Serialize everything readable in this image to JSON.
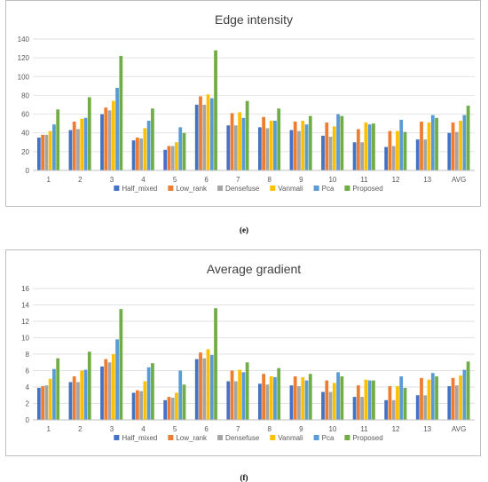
{
  "captions": {
    "e": "(e)",
    "f": "(f)"
  },
  "chart_data": [
    {
      "type": "bar",
      "title": "Edge intensity",
      "xlabel": "",
      "ylabel": "",
      "ylim": [
        0,
        140
      ],
      "yticks": [
        0,
        20,
        40,
        60,
        80,
        100,
        120,
        140
      ],
      "grid": true,
      "legend": "bottom",
      "categories": [
        "1",
        "2",
        "3",
        "4",
        "5",
        "6",
        "7",
        "8",
        "9",
        "10",
        "11",
        "12",
        "13",
        "AVG"
      ],
      "series": [
        {
          "name": "Half_mixed",
          "color": "#4472C4",
          "values": [
            35,
            43,
            60,
            32,
            22,
            70,
            48,
            46,
            43,
            37,
            30,
            25,
            33,
            40
          ]
        },
        {
          "name": "Low_rank",
          "color": "#ED7D31",
          "values": [
            38,
            52,
            67,
            35,
            26,
            79,
            61,
            57,
            52,
            51,
            44,
            42,
            52,
            51
          ]
        },
        {
          "name": "Densefuse",
          "color": "#A5A5A5",
          "values": [
            38,
            44,
            64,
            34,
            26,
            70,
            48,
            45,
            42,
            36,
            30,
            26,
            33,
            41
          ]
        },
        {
          "name": "Vanmali",
          "color": "#FFC000",
          "values": [
            42,
            55,
            74,
            45,
            30,
            81,
            62,
            53,
            53,
            47,
            51,
            42,
            51,
            53
          ]
        },
        {
          "name": "Pca",
          "color": "#5B9BD5",
          "values": [
            49,
            56,
            88,
            53,
            46,
            77,
            56,
            53,
            49,
            60,
            49,
            54,
            59,
            59
          ]
        },
        {
          "name": "Proposed",
          "color": "#70AD47",
          "values": [
            65,
            78,
            122,
            66,
            40,
            128,
            74,
            66,
            58,
            58,
            50,
            41,
            56,
            69
          ]
        }
      ]
    },
    {
      "type": "bar",
      "title": "Average gradient",
      "xlabel": "",
      "ylabel": "",
      "ylim": [
        0,
        16
      ],
      "yticks": [
        0,
        2,
        4,
        6,
        8,
        10,
        12,
        14,
        16
      ],
      "grid": true,
      "legend": "bottom",
      "categories": [
        "1",
        "2",
        "3",
        "4",
        "5",
        "6",
        "7",
        "8",
        "9",
        "10",
        "11",
        "12",
        "13",
        "AVG"
      ],
      "series": [
        {
          "name": "Half_mixed",
          "color": "#4472C4",
          "values": [
            3.9,
            4.6,
            6.5,
            3.3,
            2.4,
            7.4,
            4.7,
            4.4,
            4.2,
            3.4,
            2.8,
            2.4,
            3.0,
            4.1
          ]
        },
        {
          "name": "Low_rank",
          "color": "#ED7D31",
          "values": [
            4.1,
            5.3,
            7.4,
            3.6,
            2.8,
            8.2,
            6.0,
            5.6,
            5.3,
            4.8,
            4.2,
            4.1,
            5.1,
            5.1
          ]
        },
        {
          "name": "Densefuse",
          "color": "#A5A5A5",
          "values": [
            4.2,
            4.6,
            7.0,
            3.5,
            2.7,
            7.5,
            4.7,
            4.3,
            4.1,
            3.4,
            2.8,
            2.4,
            3.0,
            4.2
          ]
        },
        {
          "name": "Vanmali",
          "color": "#FFC000",
          "values": [
            5.0,
            6.0,
            8.0,
            4.7,
            3.3,
            8.6,
            6.1,
            5.3,
            5.2,
            4.5,
            4.9,
            4.1,
            4.9,
            5.4
          ]
        },
        {
          "name": "Pca",
          "color": "#5B9BD5",
          "values": [
            6.2,
            6.1,
            9.8,
            6.4,
            6.0,
            7.9,
            5.8,
            5.2,
            4.8,
            5.8,
            4.8,
            5.3,
            5.7,
            6.1
          ]
        },
        {
          "name": "Proposed",
          "color": "#70AD47",
          "values": [
            7.5,
            8.3,
            13.5,
            6.9,
            4.3,
            13.6,
            7.0,
            6.3,
            5.6,
            5.3,
            4.8,
            3.9,
            5.3,
            7.1
          ]
        }
      ]
    }
  ]
}
